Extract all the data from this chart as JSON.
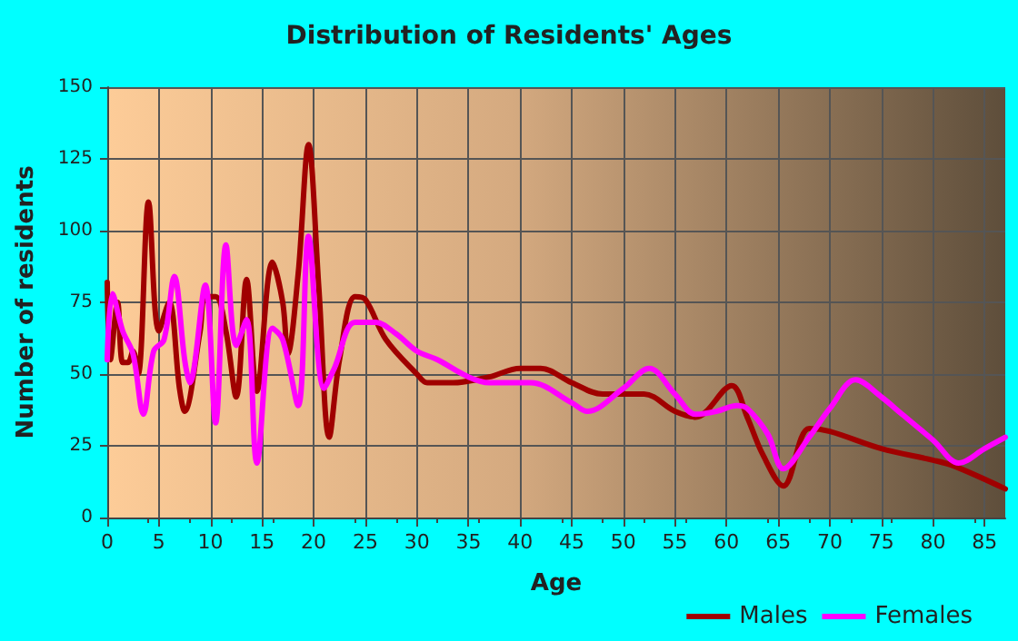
{
  "chart_data": {
    "type": "line",
    "title": "Distribution of Residents' Ages",
    "xlabel": "Age",
    "ylabel": "Number of residents",
    "xlim": [
      0,
      87
    ],
    "xticks": [
      0,
      5,
      10,
      15,
      20,
      25,
      30,
      35,
      40,
      45,
      50,
      55,
      60,
      65,
      70,
      75,
      80,
      85
    ],
    "ylim": [
      0,
      150
    ],
    "yticks": [
      0,
      25,
      50,
      75,
      100,
      125,
      150
    ],
    "grid": true,
    "legend": "bottom right",
    "marker": "none",
    "line_style": "solid",
    "series": [
      {
        "name": "Males",
        "color": "#a00000",
        "x": [
          0,
          0.3,
          1,
          1.5,
          2,
          2.5,
          3,
          4,
          5,
          6,
          7,
          7.5,
          9,
          9.5,
          10.5,
          11.5,
          12.5,
          13.5,
          14.5,
          16,
          17,
          17.5,
          18.5,
          19.5,
          20.5,
          21.5,
          22.5,
          24,
          25,
          27,
          30,
          31,
          33.5,
          37,
          40,
          42,
          45,
          48,
          52,
          55,
          57,
          60.5,
          62,
          63.5,
          65.5,
          68,
          70,
          75,
          80,
          82,
          87
        ],
        "values": [
          82,
          55,
          75,
          54,
          54,
          58,
          50,
          110,
          65,
          75,
          45,
          37,
          65,
          77,
          77,
          65,
          42,
          83,
          44,
          89,
          75,
          57,
          85,
          130,
          80,
          28,
          55,
          77,
          76,
          62,
          50,
          47,
          47,
          49,
          52,
          52,
          47,
          43,
          43,
          37,
          35,
          46,
          35,
          22,
          11,
          31,
          30,
          24,
          20,
          18,
          10
        ]
      },
      {
        "name": "Females",
        "color": "#ff00ff",
        "x": [
          0,
          0.5,
          1.5,
          2.5,
          3.5,
          4.5,
          5.5,
          6.5,
          7.5,
          8,
          9.5,
          10.5,
          11.5,
          12.5,
          13.5,
          14.5,
          16,
          17,
          18.5,
          19.5,
          21,
          22,
          24,
          26,
          28,
          30,
          32,
          35,
          37,
          41,
          45,
          46.5,
          50,
          52.5,
          55,
          57,
          59,
          61,
          62,
          64,
          65.5,
          68,
          70,
          72.5,
          75,
          77,
          80,
          82.5,
          85,
          87
        ],
        "values": [
          55,
          78,
          65,
          57,
          36,
          58,
          62,
          84,
          55,
          47,
          81,
          33,
          95,
          60,
          69,
          19,
          66,
          62,
          39,
          98,
          45,
          52,
          68,
          68,
          64,
          58,
          55,
          49,
          47,
          47,
          40,
          37,
          45,
          52,
          43,
          36,
          37,
          39,
          38,
          29,
          17,
          28,
          38,
          48,
          42,
          36,
          27,
          19,
          24,
          28
        ]
      }
    ]
  }
}
